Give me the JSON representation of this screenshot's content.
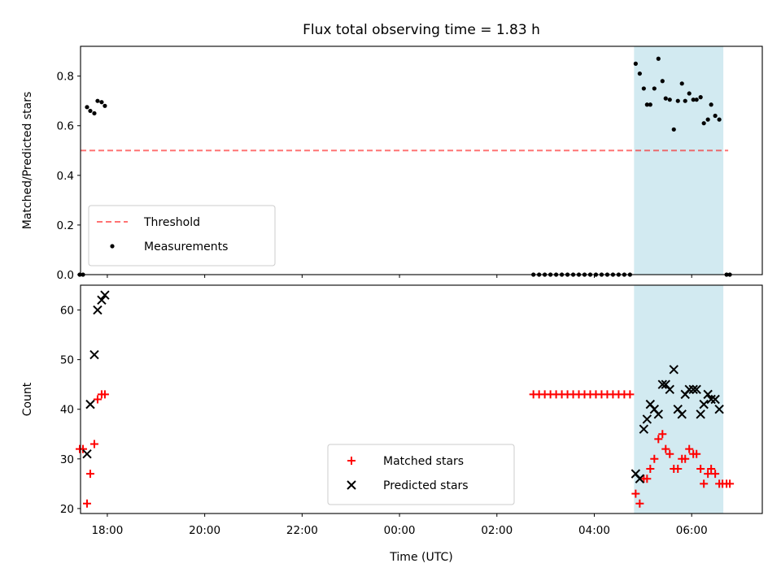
{
  "chart_data": [
    {
      "type": "scatter",
      "title": "Flux total observing time = 1.83 h",
      "ylabel": "Matched/Predicted stars",
      "xlim": [
        "17:27",
        "07:27"
      ],
      "ylim": [
        0,
        0.92
      ],
      "yticks": [
        "0.0",
        "0.2",
        "0.4",
        "0.6",
        "0.8"
      ],
      "highlight_span": {
        "from": "04:49",
        "to": "06:39",
        "color": "#add8e6"
      },
      "threshold": {
        "name": "Threshold",
        "y": 0.5,
        "x_from": "17:27",
        "x_to": "06:45",
        "color": "#ff0000",
        "style": "dashed"
      },
      "series": [
        {
          "name": "Measurements",
          "marker": "dot",
          "color": "#000000",
          "points": [
            [
              "17:26",
              0.0
            ],
            [
              "17:30",
              0.0
            ],
            [
              "17:35",
              0.675
            ],
            [
              "17:39",
              0.66
            ],
            [
              "17:44",
              0.65
            ],
            [
              "17:48",
              0.7
            ],
            [
              "17:53",
              0.695
            ],
            [
              "17:57",
              0.68
            ],
            [
              "02:45",
              0.0
            ],
            [
              "02:52",
              0.0
            ],
            [
              "02:59",
              0.0
            ],
            [
              "03:06",
              0.0
            ],
            [
              "03:13",
              0.0
            ],
            [
              "03:20",
              0.0
            ],
            [
              "03:27",
              0.0
            ],
            [
              "03:34",
              0.0
            ],
            [
              "03:41",
              0.0
            ],
            [
              "03:48",
              0.0
            ],
            [
              "03:55",
              0.0
            ],
            [
              "04:02",
              0.0
            ],
            [
              "04:09",
              0.0
            ],
            [
              "04:16",
              0.0
            ],
            [
              "04:23",
              0.0
            ],
            [
              "04:30",
              0.0
            ],
            [
              "04:37",
              0.0
            ],
            [
              "04:44",
              0.0
            ],
            [
              "04:51",
              0.85
            ],
            [
              "04:56",
              0.81
            ],
            [
              "05:01",
              0.75
            ],
            [
              "05:05",
              0.685
            ],
            [
              "05:09",
              0.685
            ],
            [
              "05:14",
              0.75
            ],
            [
              "05:19",
              0.87
            ],
            [
              "05:24",
              0.78
            ],
            [
              "05:28",
              0.71
            ],
            [
              "05:33",
              0.705
            ],
            [
              "05:38",
              0.585
            ],
            [
              "05:43",
              0.7
            ],
            [
              "05:48",
              0.77
            ],
            [
              "05:52",
              0.7
            ],
            [
              "05:57",
              0.73
            ],
            [
              "06:02",
              0.705
            ],
            [
              "06:06",
              0.705
            ],
            [
              "06:11",
              0.715
            ],
            [
              "06:15",
              0.61
            ],
            [
              "06:20",
              0.625
            ],
            [
              "06:24",
              0.685
            ],
            [
              "06:29",
              0.64
            ],
            [
              "06:34",
              0.625
            ],
            [
              "06:43",
              0.0
            ],
            [
              "06:47",
              0.0
            ]
          ]
        }
      ],
      "legend": {
        "placement": "lower-left"
      }
    },
    {
      "type": "scatter",
      "xlabel": "Time (UTC)",
      "ylabel": "Count",
      "xlim": [
        "17:27",
        "07:27"
      ],
      "ylim": [
        19,
        65
      ],
      "yticks": [
        "20",
        "30",
        "40",
        "50",
        "60"
      ],
      "xticks": [
        "18:00",
        "20:00",
        "22:00",
        "00:00",
        "02:00",
        "04:00",
        "06:00"
      ],
      "highlight_span": {
        "from": "04:49",
        "to": "06:39",
        "color": "#add8e6"
      },
      "series": [
        {
          "name": "Matched stars",
          "marker": "plus",
          "color": "#ff0000",
          "points": [
            [
              "17:26",
              32
            ],
            [
              "17:30",
              32
            ],
            [
              "17:35",
              21
            ],
            [
              "17:39",
              27
            ],
            [
              "17:44",
              33
            ],
            [
              "17:48",
              42
            ],
            [
              "17:53",
              43
            ],
            [
              "17:57",
              43
            ],
            [
              "02:45",
              43
            ],
            [
              "02:52",
              43
            ],
            [
              "02:59",
              43
            ],
            [
              "03:06",
              43
            ],
            [
              "03:13",
              43
            ],
            [
              "03:20",
              43
            ],
            [
              "03:27",
              43
            ],
            [
              "03:34",
              43
            ],
            [
              "03:41",
              43
            ],
            [
              "03:48",
              43
            ],
            [
              "03:55",
              43
            ],
            [
              "04:02",
              43
            ],
            [
              "04:09",
              43
            ],
            [
              "04:16",
              43
            ],
            [
              "04:23",
              43
            ],
            [
              "04:30",
              43
            ],
            [
              "04:37",
              43
            ],
            [
              "04:44",
              43
            ],
            [
              "04:51",
              23
            ],
            [
              "04:56",
              21
            ],
            [
              "05:01",
              26
            ],
            [
              "05:05",
              26
            ],
            [
              "05:09",
              28
            ],
            [
              "05:14",
              30
            ],
            [
              "05:19",
              34
            ],
            [
              "05:24",
              35
            ],
            [
              "05:28",
              32
            ],
            [
              "05:33",
              31
            ],
            [
              "05:38",
              28
            ],
            [
              "05:43",
              28
            ],
            [
              "05:48",
              30
            ],
            [
              "05:52",
              30
            ],
            [
              "05:57",
              32
            ],
            [
              "06:02",
              31
            ],
            [
              "06:06",
              31
            ],
            [
              "06:11",
              28
            ],
            [
              "06:15",
              25
            ],
            [
              "06:20",
              27
            ],
            [
              "06:24",
              28
            ],
            [
              "06:29",
              27
            ],
            [
              "06:34",
              25
            ],
            [
              "06:38",
              25
            ],
            [
              "06:43",
              25
            ],
            [
              "06:47",
              25
            ]
          ]
        },
        {
          "name": "Predicted stars",
          "marker": "x",
          "color": "#000000",
          "points": [
            [
              "17:35",
              31
            ],
            [
              "17:39",
              41
            ],
            [
              "17:44",
              51
            ],
            [
              "17:48",
              60
            ],
            [
              "17:53",
              62
            ],
            [
              "17:57",
              63
            ],
            [
              "04:51",
              27
            ],
            [
              "04:56",
              26
            ],
            [
              "05:01",
              36
            ],
            [
              "05:05",
              38
            ],
            [
              "05:09",
              41
            ],
            [
              "05:14",
              40
            ],
            [
              "05:19",
              39
            ],
            [
              "05:24",
              45
            ],
            [
              "05:28",
              45
            ],
            [
              "05:33",
              44
            ],
            [
              "05:38",
              48
            ],
            [
              "05:43",
              40
            ],
            [
              "05:48",
              39
            ],
            [
              "05:52",
              43
            ],
            [
              "05:57",
              44
            ],
            [
              "06:02",
              44
            ],
            [
              "06:06",
              44
            ],
            [
              "06:11",
              39
            ],
            [
              "06:15",
              41
            ],
            [
              "06:20",
              43
            ],
            [
              "06:24",
              42
            ],
            [
              "06:29",
              42
            ],
            [
              "06:34",
              40
            ]
          ]
        }
      ],
      "legend": {
        "placement": "lower-center"
      }
    }
  ]
}
